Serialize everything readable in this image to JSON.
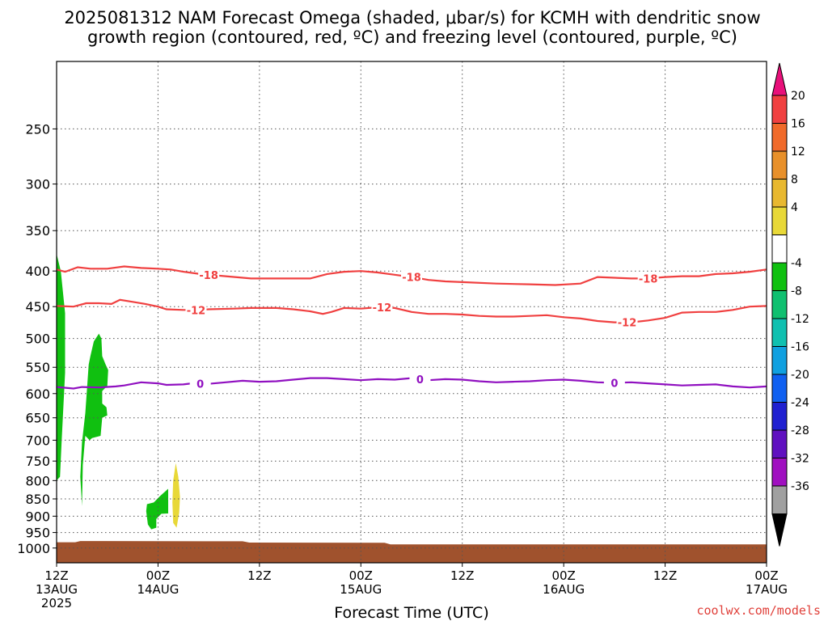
{
  "title_line1": "2025081312 NAM Forecast Omega (shaded, μbar/s) for KCMH with dendritic snow",
  "title_line2": "growth region (contoured, red, ºC) and freezing level (contoured, purple, ºC)",
  "credit": "coolwx.com/models",
  "chart_data": {
    "type": "time-height cross section",
    "title": "2025081312 NAM Forecast Omega (shaded, μbar/s) for KCMH with dendritic snow growth region (contoured, red, ºC) and freezing level (contoured, purple, ºC)",
    "xlabel": "Forecast Time (UTC)",
    "xlim_hours": [
      0,
      84
    ],
    "x_ticks": [
      {
        "hour": 0,
        "lines": [
          "12Z",
          "13AUG",
          "2025"
        ]
      },
      {
        "hour": 12,
        "lines": [
          "00Z",
          "14AUG"
        ]
      },
      {
        "hour": 24,
        "lines": [
          "12Z"
        ]
      },
      {
        "hour": 36,
        "lines": [
          "00Z",
          "15AUG"
        ]
      },
      {
        "hour": 48,
        "lines": [
          "12Z"
        ]
      },
      {
        "hour": 60,
        "lines": [
          "00Z",
          "16AUG"
        ]
      },
      {
        "hour": 72,
        "lines": [
          "12Z"
        ]
      },
      {
        "hour": 84,
        "lines": [
          "00Z",
          "17AUG"
        ]
      }
    ],
    "y_axis": {
      "units": "hPa",
      "scale": "log-pressure",
      "range": [
        200,
        1050
      ],
      "ticks": [
        250,
        300,
        350,
        400,
        450,
        500,
        550,
        600,
        650,
        700,
        750,
        800,
        850,
        900,
        950,
        1000
      ]
    },
    "grid": true,
    "colorbar": {
      "ticks": [
        "20",
        "16",
        "12",
        "8",
        "4",
        "-4",
        "-8",
        "-12",
        "-16",
        "-20",
        "-24",
        "-28",
        "-32",
        "-36"
      ],
      "colors": [
        "#e8107a",
        "#f04040",
        "#f06a2a",
        "#e8902a",
        "#e8b830",
        "#e8d838",
        "#ffffff",
        "#10c010",
        "#10c070",
        "#10c0b0",
        "#10a0e0",
        "#1060f0",
        "#2020d0",
        "#6010c0",
        "#a010c0",
        "#a0a0a0",
        "#000000"
      ]
    },
    "contours": [
      {
        "label": "-18",
        "color": "#f04040",
        "points": [
          [
            0,
            398
          ],
          [
            1,
            401
          ],
          [
            2.5,
            395
          ],
          [
            4,
            397
          ],
          [
            6,
            397
          ],
          [
            8,
            394
          ],
          [
            10,
            396
          ],
          [
            12,
            397
          ],
          [
            13.5,
            398
          ],
          [
            15,
            401
          ],
          [
            17,
            404
          ],
          [
            20,
            407
          ],
          [
            23,
            410
          ],
          [
            27,
            410
          ],
          [
            30,
            410
          ],
          [
            32,
            404
          ],
          [
            34,
            401
          ],
          [
            36,
            400
          ],
          [
            38,
            402
          ],
          [
            40,
            405
          ],
          [
            42,
            408
          ],
          [
            44,
            412
          ],
          [
            46,
            414
          ],
          [
            48,
            415
          ],
          [
            52,
            417
          ],
          [
            56,
            418
          ],
          [
            59,
            419
          ],
          [
            62,
            417
          ],
          [
            64,
            408
          ],
          [
            66,
            409
          ],
          [
            68,
            410
          ],
          [
            70,
            410
          ],
          [
            72,
            408
          ],
          [
            74,
            407
          ],
          [
            76,
            407
          ],
          [
            78,
            404
          ],
          [
            80,
            403
          ],
          [
            82,
            401
          ],
          [
            84,
            398
          ]
        ],
        "label_hours": [
          18,
          42,
          70
        ]
      },
      {
        "label": "-12",
        "color": "#f04040",
        "points": [
          [
            0,
            449
          ],
          [
            2,
            450
          ],
          [
            3.5,
            445
          ],
          [
            5,
            445
          ],
          [
            6.5,
            446
          ],
          [
            7.5,
            440
          ],
          [
            9,
            443
          ],
          [
            10.5,
            446
          ],
          [
            12,
            450
          ],
          [
            13,
            454
          ],
          [
            15,
            455
          ],
          [
            17,
            455
          ],
          [
            18,
            454
          ],
          [
            21,
            453
          ],
          [
            23,
            452
          ],
          [
            26,
            452
          ],
          [
            28,
            454
          ],
          [
            30,
            457
          ],
          [
            31.5,
            461
          ],
          [
            32.5,
            458
          ],
          [
            34,
            452
          ],
          [
            36,
            453
          ],
          [
            38,
            451
          ],
          [
            40,
            452
          ],
          [
            42,
            458
          ],
          [
            44,
            461
          ],
          [
            46,
            461
          ],
          [
            48,
            462
          ],
          [
            50,
            464
          ],
          [
            52,
            465
          ],
          [
            54,
            465
          ],
          [
            56,
            464
          ],
          [
            58,
            463
          ],
          [
            60,
            466
          ],
          [
            62,
            468
          ],
          [
            64,
            472
          ],
          [
            66,
            474
          ],
          [
            68,
            474
          ],
          [
            70,
            471
          ],
          [
            72,
            467
          ],
          [
            74,
            459
          ],
          [
            76,
            458
          ],
          [
            78,
            458
          ],
          [
            80,
            455
          ],
          [
            82,
            450
          ],
          [
            84,
            449
          ]
        ],
        "label_hours": [
          16.5,
          38.5,
          67.5
        ]
      },
      {
        "label": "0",
        "color": "#9010c0",
        "points": [
          [
            0,
            587
          ],
          [
            2,
            590
          ],
          [
            3,
            587
          ],
          [
            5,
            588
          ],
          [
            7,
            586
          ],
          [
            8,
            584
          ],
          [
            10,
            578
          ],
          [
            12,
            580
          ],
          [
            13,
            583
          ],
          [
            15,
            582
          ],
          [
            16,
            580
          ],
          [
            18,
            581
          ],
          [
            20,
            578
          ],
          [
            22,
            575
          ],
          [
            24,
            577
          ],
          [
            26,
            576
          ],
          [
            28,
            573
          ],
          [
            30,
            570
          ],
          [
            32,
            570
          ],
          [
            34,
            572
          ],
          [
            36,
            574
          ],
          [
            38,
            572
          ],
          [
            40,
            573
          ],
          [
            42,
            570
          ],
          [
            44,
            574
          ],
          [
            46,
            572
          ],
          [
            48,
            573
          ],
          [
            50,
            576
          ],
          [
            52,
            578
          ],
          [
            54,
            577
          ],
          [
            56,
            576
          ],
          [
            58,
            574
          ],
          [
            60,
            573
          ],
          [
            62,
            575
          ],
          [
            64,
            578
          ],
          [
            66,
            579
          ],
          [
            68,
            578
          ],
          [
            70,
            580
          ],
          [
            72,
            582
          ],
          [
            74,
            584
          ],
          [
            76,
            583
          ],
          [
            78,
            582
          ],
          [
            80,
            586
          ],
          [
            82,
            588
          ],
          [
            84,
            586
          ]
        ],
        "label_hours": [
          17,
          43,
          66
        ]
      }
    ],
    "shaded_regions": [
      {
        "range": "-8 to -4",
        "color": "#10c010",
        "points": [
          [
            0,
            378
          ],
          [
            0.5,
            400
          ],
          [
            1,
            460
          ],
          [
            1,
            560
          ],
          [
            0.6,
            700
          ],
          [
            0.4,
            790
          ],
          [
            0,
            800
          ]
        ]
      },
      {
        "range": "-8 to -4",
        "color": "#10c010",
        "points": [
          [
            2.8,
            790
          ],
          [
            3.0,
            705
          ],
          [
            3.4,
            640
          ],
          [
            3.8,
            545
          ],
          [
            4,
            530
          ],
          [
            4.4,
            505
          ],
          [
            5,
            492
          ],
          [
            5.3,
            500
          ],
          [
            5.4,
            530
          ],
          [
            5.8,
            545
          ],
          [
            6.1,
            555
          ],
          [
            6,
            585
          ],
          [
            5.4,
            595
          ],
          [
            5.4,
            620
          ],
          [
            5.9,
            628
          ],
          [
            6,
            645
          ],
          [
            5.4,
            650
          ],
          [
            5.2,
            690
          ],
          [
            4.2,
            695
          ],
          [
            3.9,
            700
          ],
          [
            3.4,
            690
          ],
          [
            3.1,
            760
          ],
          [
            3,
            870
          ]
        ]
      },
      {
        "range": "-8 to -4",
        "color": "#10c010",
        "points": [
          [
            10.7,
            865
          ],
          [
            11.5,
            860
          ],
          [
            12.2,
            843
          ],
          [
            13.2,
            822
          ],
          [
            13.2,
            892
          ],
          [
            12.4,
            893
          ],
          [
            11.8,
            908
          ],
          [
            11.8,
            935
          ],
          [
            11.2,
            940
          ],
          [
            10.8,
            925
          ],
          [
            10.6,
            885
          ]
        ]
      },
      {
        "range": "4 to 8",
        "color": "#e8d838",
        "points": [
          [
            14.1,
            755
          ],
          [
            14.4,
            790
          ],
          [
            14.6,
            845
          ],
          [
            14.5,
            890
          ],
          [
            14.2,
            935
          ],
          [
            13.8,
            920
          ],
          [
            13.7,
            860
          ],
          [
            13.8,
            800
          ]
        ]
      }
    ],
    "ground": {
      "color": "#a0522d",
      "top_hpa": [
        [
          0,
          981
        ],
        [
          2.2,
          981
        ],
        [
          2.8,
          977
        ],
        [
          22,
          978
        ],
        [
          22.8,
          982
        ],
        [
          38.8,
          983
        ],
        [
          39.5,
          988
        ],
        [
          84,
          988
        ]
      ]
    }
  }
}
